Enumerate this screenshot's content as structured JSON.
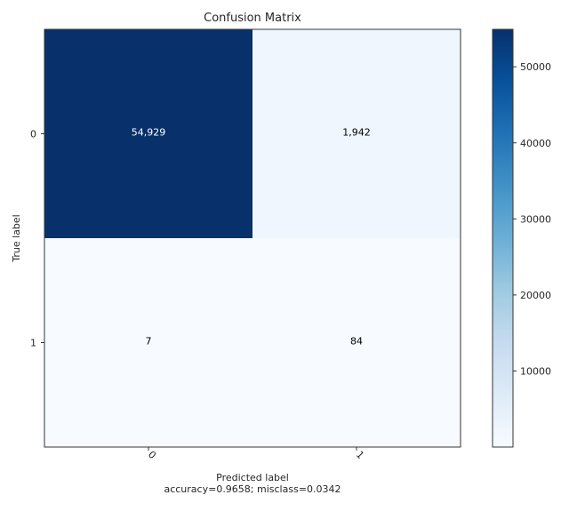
{
  "chart_data": {
    "type": "heatmap",
    "title": "Confusion Matrix",
    "xlabel": "Predicted label",
    "xlabel_note": "accuracy=0.9658; misclass=0.0342",
    "ylabel": "True label",
    "x_categories": [
      "0",
      "1"
    ],
    "y_categories": [
      "0",
      "1"
    ],
    "values": [
      [
        54929,
        1942
      ],
      [
        7,
        84
      ]
    ],
    "value_labels": [
      [
        "54,929",
        "1,942"
      ],
      [
        "7",
        "84"
      ]
    ],
    "colormap": "Blues",
    "color_range": [
      7,
      54929
    ],
    "colorbar_ticks": [
      10000,
      20000,
      30000,
      40000,
      50000
    ],
    "colorbar_tick_labels": [
      "10000",
      "20000",
      "30000",
      "40000",
      "50000"
    ],
    "colors": {
      "text_dark": "#000000",
      "text_light": "#ffffff",
      "frame": "#333333"
    }
  }
}
